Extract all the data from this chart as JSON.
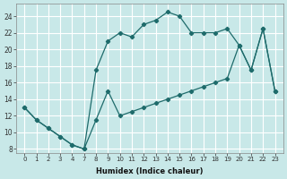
{
  "xlabel": "Humidex (Indice chaleur)",
  "bg_color": "#c8e8e8",
  "grid_color": "#ffffff",
  "line_color": "#1e6b6b",
  "series1_x": [
    0,
    1,
    2,
    3,
    4,
    7,
    8,
    9,
    10,
    11,
    12,
    13,
    14,
    15,
    16,
    17,
    18,
    19,
    20,
    21,
    22,
    23
  ],
  "series1_y": [
    13,
    11.5,
    10.5,
    9.5,
    8.5,
    8,
    17.5,
    21.0,
    22.0,
    21.5,
    23.0,
    23.5,
    24.5,
    24.0,
    22.0,
    22.0,
    22.0,
    22.5,
    20.5,
    17.5,
    22.5,
    15.0
  ],
  "series2_x": [
    0,
    1,
    2,
    3,
    4,
    7,
    8,
    9,
    10,
    11,
    12,
    13,
    14,
    15,
    16,
    17,
    18,
    19,
    20,
    21,
    22,
    23
  ],
  "series2_y": [
    13,
    11.5,
    10.5,
    9.5,
    8.5,
    8,
    11.5,
    15.0,
    12.0,
    12.5,
    13.0,
    13.5,
    14.0,
    14.5,
    15.0,
    15.5,
    16.0,
    16.5,
    20.5,
    17.5,
    22.5,
    15.0
  ],
  "xlim": [
    -0.5,
    23.5
  ],
  "ylim": [
    7.5,
    25.5
  ],
  "yticks": [
    8,
    10,
    12,
    14,
    16,
    18,
    20,
    22,
    24
  ],
  "xtick_labels": [
    "0",
    "1",
    "2",
    "3",
    "4",
    "7",
    "8",
    "9",
    "10",
    "11",
    "12",
    "13",
    "14",
    "15",
    "16",
    "17",
    "18",
    "19",
    "20",
    "21",
    "22",
    "23"
  ],
  "xtick_positions": [
    0,
    1,
    2,
    3,
    4,
    7,
    8,
    9,
    10,
    11,
    12,
    13,
    14,
    15,
    16,
    17,
    18,
    19,
    20,
    21,
    22,
    23
  ]
}
